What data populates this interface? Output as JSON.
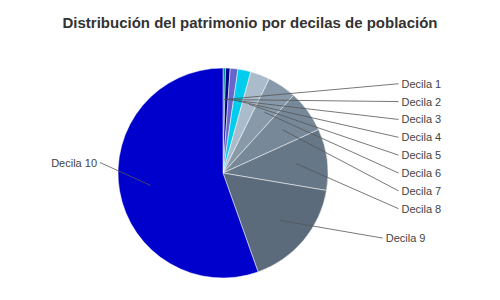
{
  "chart_data": {
    "type": "pie",
    "title": "Distribución del patrimonio por decilas de población",
    "categories": [
      "Decila 1",
      "Decila 2",
      "Decila 3",
      "Decila 4",
      "Decila 5",
      "Decila 6",
      "Decila 7",
      "Decila 8",
      "Decila 9",
      "Decila 10"
    ],
    "values": [
      0.4,
      0.7,
      1.2,
      2.0,
      3.0,
      4.5,
      6.5,
      9.5,
      17.0,
      55.7
    ],
    "colors": [
      "#008B8B",
      "#00008B",
      "#6666CC",
      "#00CCEE",
      "#AABBCC",
      "#8899AA",
      "#778899",
      "#667788",
      "#5B6B7B",
      "#0000CC"
    ]
  }
}
